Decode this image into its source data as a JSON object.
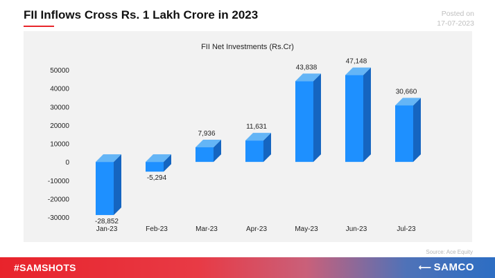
{
  "header": {
    "title": "FII Inflows Cross Rs. 1 Lakh Crore in 2023",
    "posted_label": "Posted on",
    "posted_date": "17-07-2023"
  },
  "source": "Source:  Ace Equity",
  "footer": {
    "hashtag": "#SAMSHOTS",
    "brand": "SAMCO",
    "brand_icon": "samco-logo-icon"
  },
  "colors": {
    "bar_front": "#1e90ff",
    "bar_side": "#1565c0",
    "bar_top": "#64b5f6",
    "panel": "#f2f2f2",
    "accent": "#e8252a"
  },
  "chart_data": {
    "type": "bar",
    "title": "FII Net Investments (Rs.Cr)",
    "categories": [
      "Jan-23",
      "Feb-23",
      "Mar-23",
      "Apr-23",
      "May-23",
      "Jun-23",
      "Jul-23"
    ],
    "values": [
      -28852,
      -5294,
      7936,
      11631,
      43838,
      47148,
      30660
    ],
    "data_labels": [
      "-28,852",
      "-5,294",
      "7,936",
      "11,631",
      "43,838",
      "47,148",
      "30,660"
    ],
    "yticks": [
      50000,
      40000,
      30000,
      20000,
      10000,
      0,
      -10000,
      -20000,
      -30000
    ],
    "ylim": [
      -30000,
      50000
    ],
    "grid": false,
    "legend": "none",
    "style": "3d"
  }
}
